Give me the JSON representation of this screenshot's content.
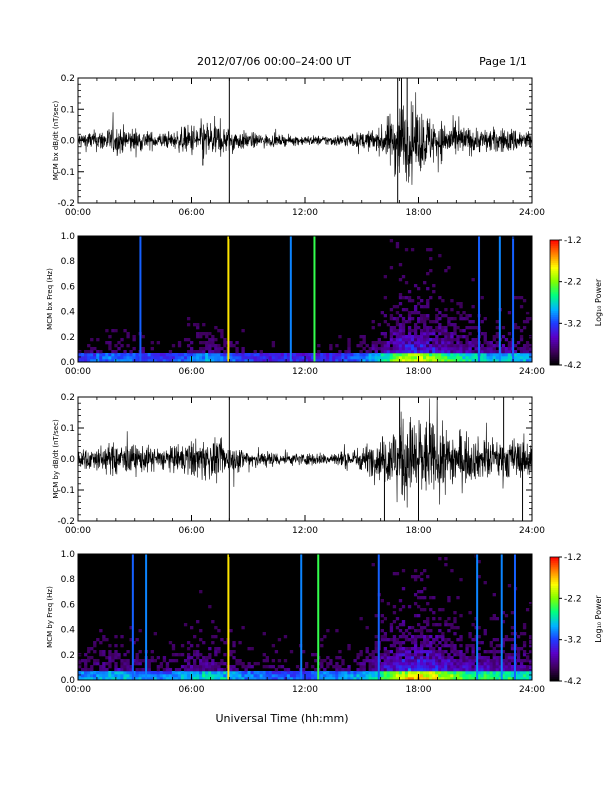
{
  "header": {
    "title": "2012/07/06  00:00–24:00 UT",
    "page": "Page 1/1"
  },
  "xaxis": {
    "label": "Universal Time (hh:mm)",
    "ticks": [
      "00:00",
      "06:00",
      "12:00",
      "18:00",
      "24:00"
    ]
  },
  "colorbar": {
    "label": "Log₁₀ Power",
    "ticks": [
      "-1.2",
      "-2.2",
      "-3.2",
      "-4.2"
    ],
    "range": [
      -4.2,
      -1.2
    ],
    "colors": [
      "#000000",
      "#400060",
      "#5a00c8",
      "#1e3cff",
      "#00b4ff",
      "#00ff80",
      "#80ff00",
      "#ffff00",
      "#ff8000",
      "#ff0000"
    ]
  },
  "chart_data": [
    {
      "type": "line",
      "ylabel": "MCM bx dB/dt (nT/sec)",
      "ylim": [
        -0.2,
        0.2
      ],
      "yticks": [
        "0.2",
        "0.1",
        "0.0",
        "-0.1",
        "-0.2"
      ],
      "x_hours": [
        0,
        1,
        2,
        3,
        4,
        5,
        6,
        7,
        8,
        9,
        10,
        11,
        12,
        13,
        14,
        15,
        16,
        17,
        18,
        19,
        20,
        21,
        22,
        23,
        24
      ],
      "amplitude": [
        0.02,
        0.025,
        0.035,
        0.03,
        0.02,
        0.02,
        0.04,
        0.05,
        0.03,
        0.02,
        0.015,
        0.012,
        0.012,
        0.012,
        0.015,
        0.02,
        0.03,
        0.1,
        0.08,
        0.05,
        0.04,
        0.03,
        0.03,
        0.03,
        0.025
      ],
      "spikes": [
        {
          "x": 8.0,
          "y": 0.2
        },
        {
          "x": 8.0,
          "y": -0.2
        },
        {
          "x": 16.9,
          "y": -0.2
        },
        {
          "x": 16.9,
          "y": 0.2
        },
        {
          "x": 17.1,
          "y": 0.2
        },
        {
          "x": 17.4,
          "y": 0.2
        },
        {
          "x": 6.6,
          "y": -0.08
        }
      ]
    },
    {
      "type": "heatmap",
      "ylabel": "MCM bx Freq (Hz)",
      "ylim": [
        0.0,
        1.0
      ],
      "yticks": [
        "1.0",
        "0.8",
        "0.6",
        "0.4",
        "0.2",
        "0.0"
      ],
      "bands": [
        {
          "x": 3.3,
          "value": -3.1
        },
        {
          "x": 7.95,
          "value": -1.8
        },
        {
          "x": 11.25,
          "value": -3.0
        },
        {
          "x": 12.5,
          "value": -2.4
        },
        {
          "x": 21.2,
          "value": -3.1
        },
        {
          "x": 22.3,
          "value": -3.0
        },
        {
          "x": 23.0,
          "value": -3.1
        }
      ],
      "activity": [
        0.2,
        0.25,
        0.3,
        0.25,
        0.2,
        0.2,
        0.3,
        0.35,
        0.25,
        0.2,
        0.15,
        0.15,
        0.15,
        0.15,
        0.2,
        0.25,
        0.4,
        0.7,
        0.75,
        0.65,
        0.5,
        0.45,
        0.4,
        0.4,
        0.35
      ]
    },
    {
      "type": "line",
      "ylabel": "MCM by dB/dt (nT/sec)",
      "ylim": [
        -0.2,
        0.2
      ],
      "yticks": [
        "0.2",
        "0.1",
        "0.0",
        "-0.1",
        "-0.2"
      ],
      "x_hours": [
        0,
        1,
        2,
        3,
        4,
        5,
        6,
        7,
        8,
        9,
        10,
        11,
        12,
        13,
        14,
        15,
        16,
        17,
        18,
        19,
        20,
        21,
        22,
        23,
        24
      ],
      "amplitude": [
        0.025,
        0.03,
        0.04,
        0.035,
        0.03,
        0.03,
        0.045,
        0.05,
        0.035,
        0.025,
        0.02,
        0.015,
        0.015,
        0.015,
        0.02,
        0.03,
        0.05,
        0.1,
        0.11,
        0.08,
        0.07,
        0.05,
        0.05,
        0.05,
        0.045
      ],
      "spikes": [
        {
          "x": 8.0,
          "y": 0.2
        },
        {
          "x": 8.0,
          "y": -0.2
        },
        {
          "x": 16.2,
          "y": -0.2
        },
        {
          "x": 17.0,
          "y": 0.2
        },
        {
          "x": 18.0,
          "y": -0.2
        },
        {
          "x": 22.5,
          "y": 0.2
        },
        {
          "x": 23.5,
          "y": -0.2
        }
      ]
    },
    {
      "type": "heatmap",
      "ylabel": "MCM by Freq (Hz)",
      "ylim": [
        0.0,
        1.0
      ],
      "yticks": [
        "1.0",
        "0.8",
        "0.6",
        "0.4",
        "0.2",
        "0.0"
      ],
      "bands": [
        {
          "x": 2.9,
          "value": -3.1
        },
        {
          "x": 3.6,
          "value": -3.0
        },
        {
          "x": 7.95,
          "value": -1.8
        },
        {
          "x": 11.8,
          "value": -3.0
        },
        {
          "x": 12.7,
          "value": -2.4
        },
        {
          "x": 15.9,
          "value": -3.1
        },
        {
          "x": 21.1,
          "value": -3.0
        },
        {
          "x": 22.4,
          "value": -3.0
        },
        {
          "x": 23.1,
          "value": -3.1
        }
      ],
      "activity": [
        0.3,
        0.35,
        0.4,
        0.35,
        0.3,
        0.3,
        0.4,
        0.45,
        0.35,
        0.3,
        0.25,
        0.25,
        0.25,
        0.3,
        0.3,
        0.35,
        0.5,
        0.75,
        0.85,
        0.75,
        0.6,
        0.55,
        0.5,
        0.5,
        0.45
      ]
    }
  ]
}
